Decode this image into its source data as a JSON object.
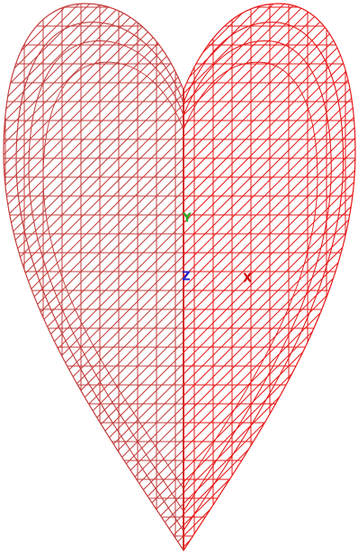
{
  "axes": {
    "y_label": "Y",
    "z_label": "Z",
    "x_label": "X"
  }
}
